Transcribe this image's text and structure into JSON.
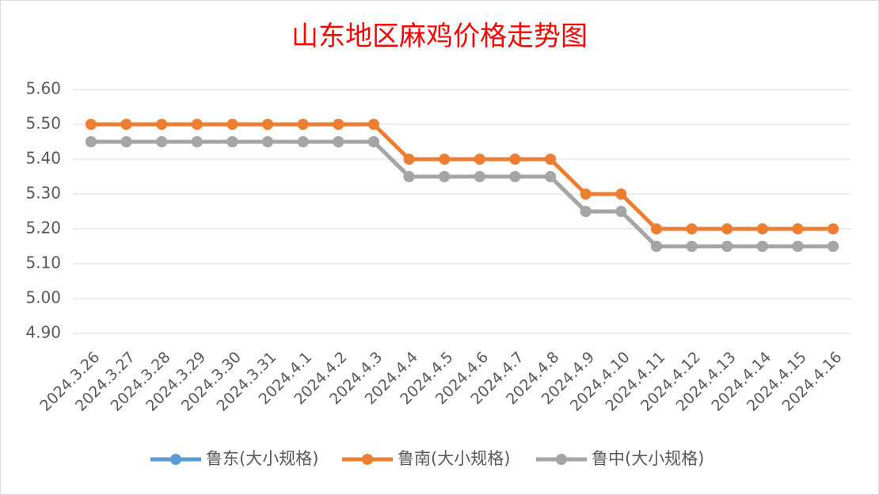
{
  "chart_data": {
    "type": "line",
    "title": "山东地区麻鸡价格走势图",
    "categories": [
      "2024.3.26",
      "2024.3.27",
      "2024.3.28",
      "2024.3.29",
      "2024.3.30",
      "2024.3.31",
      "2024.4.1",
      "2024.4.2",
      "2024.4.3",
      "2024.4.4",
      "2024.4.5",
      "2024.4.6",
      "2024.4.7",
      "2024.4.8",
      "2024.4.9",
      "2024.4.10",
      "2024.4.11",
      "2024.4.12",
      "2024.4.13",
      "2024.4.14",
      "2024.4.15",
      "2024.4.16"
    ],
    "series": [
      {
        "name": "鲁东(大小规格)",
        "color": "#5b9bd5",
        "values": [
          5.45,
          5.45,
          5.45,
          5.45,
          5.45,
          5.45,
          5.45,
          5.45,
          5.45,
          5.35,
          5.35,
          5.35,
          5.35,
          5.35,
          5.25,
          5.25,
          5.15,
          5.15,
          5.15,
          5.15,
          5.15,
          5.15
        ]
      },
      {
        "name": "鲁南(大小规格)",
        "color": "#ed7d31",
        "values": [
          5.5,
          5.5,
          5.5,
          5.5,
          5.5,
          5.5,
          5.5,
          5.5,
          5.5,
          5.4,
          5.4,
          5.4,
          5.4,
          5.4,
          5.3,
          5.3,
          5.2,
          5.2,
          5.2,
          5.2,
          5.2,
          5.2
        ]
      },
      {
        "name": "鲁中(大小规格)",
        "color": "#a5a5a5",
        "values": [
          5.45,
          5.45,
          5.45,
          5.45,
          5.45,
          5.45,
          5.45,
          5.45,
          5.45,
          5.35,
          5.35,
          5.35,
          5.35,
          5.35,
          5.25,
          5.25,
          5.15,
          5.15,
          5.15,
          5.15,
          5.15,
          5.15
        ]
      }
    ],
    "ylim": [
      4.9,
      5.6
    ],
    "yticks": [
      {
        "value": 4.9,
        "label": "4.90"
      },
      {
        "value": 5.0,
        "label": "5.00"
      },
      {
        "value": 5.1,
        "label": "5.10"
      },
      {
        "value": 5.2,
        "label": "5.20"
      },
      {
        "value": 5.3,
        "label": "5.30"
      },
      {
        "value": 5.4,
        "label": "5.40"
      },
      {
        "value": 5.5,
        "label": "5.50"
      },
      {
        "value": 5.6,
        "label": "5.60"
      }
    ],
    "grid": true,
    "legend": "bottom"
  }
}
